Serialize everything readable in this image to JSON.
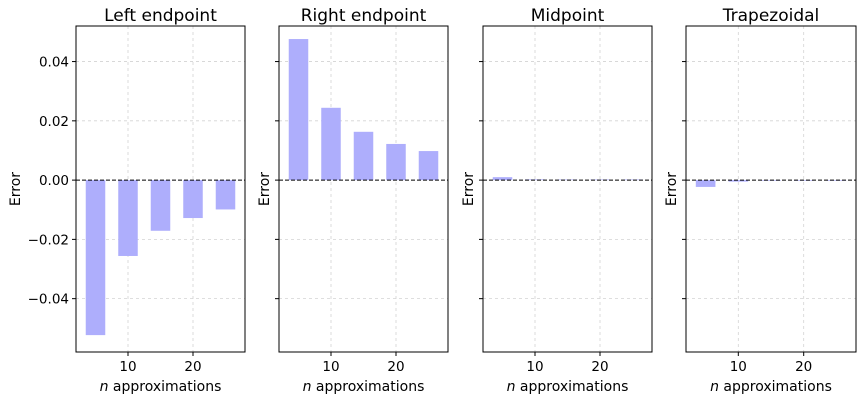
{
  "chart_data": [
    {
      "type": "bar",
      "title": "Left endpoint",
      "xlabel_prefix": "n",
      "xlabel": " approximations",
      "ylabel": "Error",
      "x": [
        5,
        10,
        15,
        20,
        25
      ],
      "values": [
        -0.0523,
        -0.0256,
        -0.0171,
        -0.0128,
        -0.0099
      ],
      "ylim": [
        -0.058,
        0.052
      ],
      "yticks": [
        0.04,
        0.02,
        0.0,
        -0.02,
        -0.04
      ],
      "ytick_labels": [
        "0.04",
        "0.02",
        "0.00",
        "−0.02",
        "−0.04"
      ],
      "xticks": [
        10,
        20
      ],
      "xtick_labels": [
        "10",
        "20"
      ],
      "show_ytick_labels": true
    },
    {
      "type": "bar",
      "title": "Right endpoint",
      "xlabel_prefix": "n",
      "xlabel": " approximations",
      "ylabel": "Error",
      "x": [
        5,
        10,
        15,
        20,
        25
      ],
      "values": [
        0.0476,
        0.0244,
        0.0163,
        0.0122,
        0.0098
      ],
      "ylim": [
        -0.058,
        0.052
      ],
      "yticks": [
        0.04,
        0.02,
        0.0,
        -0.02,
        -0.04
      ],
      "ytick_labels": [],
      "xticks": [
        10,
        20
      ],
      "xtick_labels": [
        "10",
        "20"
      ],
      "show_ytick_labels": false
    },
    {
      "type": "bar",
      "title": "Midpoint",
      "xlabel_prefix": "n",
      "xlabel": " approximations",
      "ylabel": "Error",
      "x": [
        5,
        10,
        15,
        20,
        25
      ],
      "values": [
        0.001,
        0.00025,
        0.0001,
        6e-05,
        4e-05
      ],
      "ylim": [
        -0.058,
        0.052
      ],
      "yticks": [
        0.04,
        0.02,
        0.0,
        -0.02,
        -0.04
      ],
      "ytick_labels": [],
      "xticks": [
        10,
        20
      ],
      "xtick_labels": [
        "10",
        "20"
      ],
      "show_ytick_labels": false
    },
    {
      "type": "bar",
      "title": "Trapezoidal",
      "xlabel_prefix": "n",
      "xlabel": " approximations",
      "ylabel": "Error",
      "x": [
        5,
        10,
        15,
        20,
        25
      ],
      "values": [
        -0.0023,
        -0.0005,
        -0.0002,
        -0.0001,
        -8e-05
      ],
      "ylim": [
        -0.058,
        0.052
      ],
      "yticks": [
        0.04,
        0.02,
        0.0,
        -0.02,
        -0.04
      ],
      "ytick_labels": [],
      "xticks": [
        10,
        20
      ],
      "xtick_labels": [
        "10",
        "20"
      ],
      "show_ytick_labels": false
    }
  ],
  "style": {
    "bar_color": "#aeaefc",
    "grid_color": "#d3d3d3",
    "zero_line_color": "#000000",
    "grid": true
  }
}
